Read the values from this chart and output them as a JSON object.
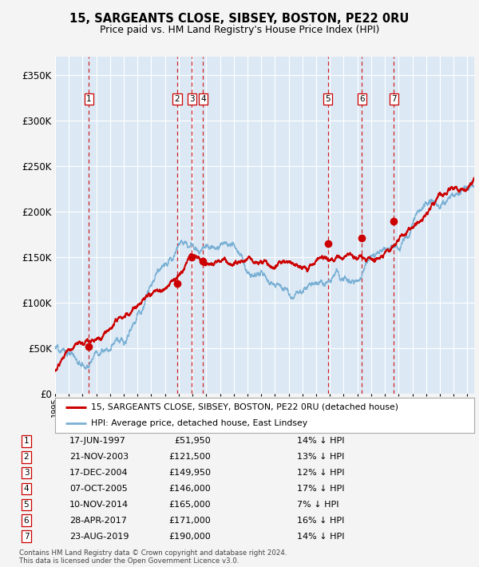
{
  "title": "15, SARGEANTS CLOSE, SIBSEY, BOSTON, PE22 0RU",
  "subtitle": "Price paid vs. HM Land Registry's House Price Index (HPI)",
  "ylim": [
    0,
    370000
  ],
  "yticks": [
    0,
    50000,
    100000,
    150000,
    200000,
    250000,
    300000,
    350000
  ],
  "ytick_labels": [
    "£0",
    "£50K",
    "£100K",
    "£150K",
    "£200K",
    "£250K",
    "£300K",
    "£350K"
  ],
  "fig_bg_color": "#f4f4f4",
  "plot_bg_color": "#dce9f5",
  "grid_color": "#ffffff",
  "hpi_line_color": "#7ab0d4",
  "price_line_color": "#cc0000",
  "sale_marker_color": "#cc0000",
  "vline_color": "#cc0000",
  "transactions": [
    {
      "id": 1,
      "price": 51950,
      "x": 1997.46
    },
    {
      "id": 2,
      "price": 121500,
      "x": 2003.89
    },
    {
      "id": 3,
      "price": 149950,
      "x": 2004.96
    },
    {
      "id": 4,
      "price": 146000,
      "x": 2005.77
    },
    {
      "id": 5,
      "price": 165000,
      "x": 2014.86
    },
    {
      "id": 6,
      "price": 171000,
      "x": 2017.32
    },
    {
      "id": 7,
      "price": 190000,
      "x": 2019.64
    }
  ],
  "legend_entries": [
    "15, SARGEANTS CLOSE, SIBSEY, BOSTON, PE22 0RU (detached house)",
    "HPI: Average price, detached house, East Lindsey"
  ],
  "table_rows": [
    {
      "id": 1,
      "date": "17-JUN-1997",
      "price": "£51,950",
      "pct": "14% ↓ HPI"
    },
    {
      "id": 2,
      "date": "21-NOV-2003",
      "price": "£121,500",
      "pct": "13% ↓ HPI"
    },
    {
      "id": 3,
      "date": "17-DEC-2004",
      "price": "£149,950",
      "pct": "12% ↓ HPI"
    },
    {
      "id": 4,
      "date": "07-OCT-2005",
      "price": "£146,000",
      "pct": "17% ↓ HPI"
    },
    {
      "id": 5,
      "date": "10-NOV-2014",
      "price": "£165,000",
      "pct": "7% ↓ HPI"
    },
    {
      "id": 6,
      "date": "28-APR-2017",
      "price": "£171,000",
      "pct": "16% ↓ HPI"
    },
    {
      "id": 7,
      "date": "23-AUG-2019",
      "price": "£190,000",
      "pct": "14% ↓ HPI"
    }
  ],
  "footer_line1": "Contains HM Land Registry data © Crown copyright and database right 2024.",
  "footer_line2": "This data is licensed under the Open Government Licence v3.0.",
  "xmin": 1995.0,
  "xmax": 2025.5
}
